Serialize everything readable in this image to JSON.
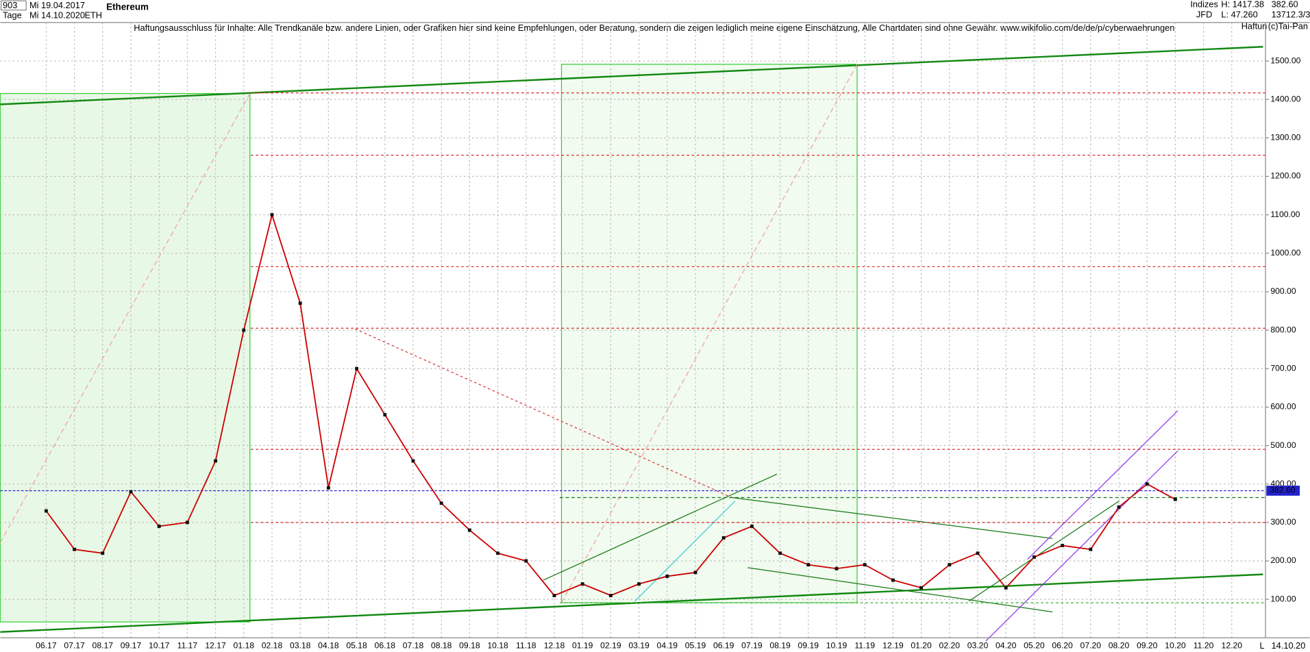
{
  "header": {
    "count": "903",
    "start_date": "Mi 19.04.2017",
    "period": "Tage",
    "end_date": "Mi 14.10.2020",
    "symbol": "ETH",
    "group": "Indizes",
    "source": "JFD",
    "high": "H: 1417.38",
    "low": "L: 47.260",
    "price": "382.60",
    "extra": "13712.3/3",
    "disclaimer": "Haftungsausschluss für Inhalte: Alle Trendkanäle bzw. andere Linien, oder Grafiken hier sind keine Empfehlungen, oder Beratung, sondern die zeigen lediglich meine eigene Einschätzung, Alle Chartdaten sind ohne Gewähr.  www.wikifolio.com/de/de/p/cyberwaehrungen",
    "short_note": "Haftun",
    "copyright": "(c)Tai-Pan",
    "scale_mode": "L",
    "footer_date": "14.10.20"
  },
  "chart_data": {
    "type": "line",
    "title": "Ethereum",
    "categories": [
      "06.17",
      "07.17",
      "08.17",
      "09.17",
      "10.17",
      "11.17",
      "12.17",
      "01.18",
      "02.18",
      "03.18",
      "04.18",
      "05.18",
      "06.18",
      "07.18",
      "08.18",
      "09.18",
      "10.18",
      "11.18",
      "12.18",
      "01.19",
      "02.19",
      "03.19",
      "04.19",
      "05.19",
      "06.19",
      "07.19",
      "08.19",
      "09.19",
      "10.19",
      "11.19",
      "12.19",
      "01.20",
      "02.20",
      "03.20",
      "04.20",
      "05.20",
      "06.20",
      "07.20",
      "08.20",
      "09.20",
      "10.20",
      "11.20",
      "12.20"
    ],
    "values": [
      330,
      230,
      220,
      380,
      290,
      300,
      460,
      800,
      1100,
      870,
      390,
      700,
      580,
      460,
      350,
      280,
      220,
      200,
      110,
      140,
      110,
      140,
      160,
      170,
      260,
      290,
      220,
      190,
      180,
      190,
      150,
      130,
      190,
      220,
      130,
      210,
      240,
      230,
      340,
      400,
      360,
      null,
      null
    ],
    "color": "#cc0000",
    "ylim": [
      0,
      1600
    ],
    "yticks": [
      {
        "value": 100,
        "label": "100.00"
      },
      {
        "value": 200,
        "label": "200.00"
      },
      {
        "value": 300,
        "label": "300.00"
      },
      {
        "value": 400,
        "label": "400.00"
      },
      {
        "value": 500,
        "label": "500.00"
      },
      {
        "value": 600,
        "label": "600.00"
      },
      {
        "value": 700,
        "label": "700.00"
      },
      {
        "value": 800,
        "label": "800.00"
      },
      {
        "value": 900,
        "label": "900.00"
      },
      {
        "value": 1000,
        "label": "1000.00"
      },
      {
        "value": 1100,
        "label": "1100.00"
      },
      {
        "value": 1200,
        "label": "1200.00"
      },
      {
        "value": 1300,
        "label": "1300.00"
      },
      {
        "value": 1400,
        "label": "1400.00"
      },
      {
        "value": 1500,
        "label": "1500.00"
      }
    ],
    "grid": true,
    "resistance_levels": [
      1417,
      1255,
      965,
      805,
      490,
      300
    ],
    "last_price": {
      "value": 382.6,
      "label": "382.60"
    }
  }
}
